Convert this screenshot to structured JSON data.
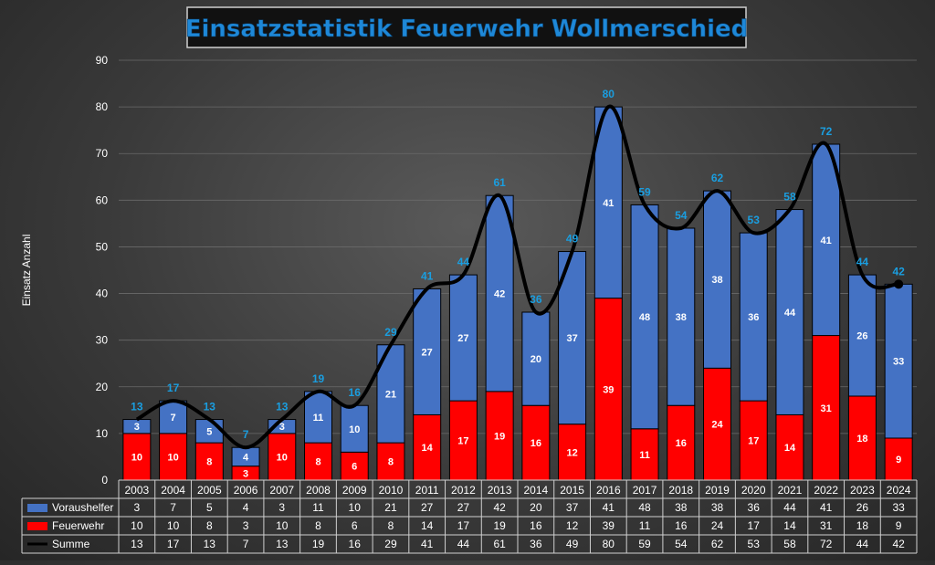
{
  "chart_data": {
    "type": "bar",
    "title": "Einsatzstatistik Feuerwehr Wollmerschied",
    "ylabel": "Einsatz Anzahl",
    "ylim": [
      0,
      90
    ],
    "yticks": [
      0,
      10,
      20,
      30,
      40,
      50,
      60,
      70,
      80,
      90
    ],
    "stacked": true,
    "grid": true,
    "categories": [
      "2003",
      "2004",
      "2005",
      "2006",
      "2007",
      "2008",
      "2009",
      "2010",
      "2011",
      "2012",
      "2013",
      "2014",
      "2015",
      "2016",
      "2017",
      "2018",
      "2019",
      "2020",
      "2021",
      "2022",
      "2023",
      "2024"
    ],
    "series": [
      {
        "name": "Voraushelfer",
        "type": "bar",
        "color": "#4472c4",
        "values": [
          3,
          7,
          5,
          4,
          3,
          11,
          10,
          21,
          27,
          27,
          42,
          20,
          37,
          41,
          48,
          38,
          38,
          36,
          44,
          41,
          26,
          33
        ]
      },
      {
        "name": "Feuerwehr",
        "type": "bar",
        "color": "#ff0000",
        "values": [
          10,
          10,
          8,
          3,
          10,
          8,
          6,
          8,
          14,
          17,
          19,
          16,
          12,
          39,
          11,
          16,
          24,
          17,
          14,
          31,
          18,
          9
        ]
      },
      {
        "name": "Summe",
        "type": "line",
        "color": "#000000",
        "values": [
          13,
          17,
          13,
          7,
          13,
          19,
          16,
          29,
          41,
          44,
          61,
          36,
          49,
          80,
          59,
          54,
          62,
          53,
          58,
          72,
          44,
          42
        ]
      }
    ],
    "total_label_color": "#1a9ee0",
    "data_table": true
  }
}
